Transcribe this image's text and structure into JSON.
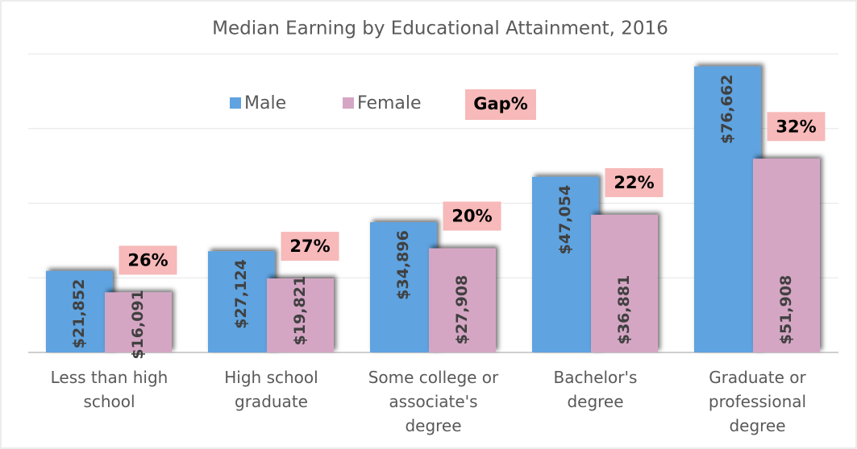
{
  "chart_data": {
    "type": "bar",
    "title": "Median Earning by Educational Attainment, 2016",
    "categories": [
      "Less than high school",
      "High school graduate",
      "Some college or associate's degree",
      "Bachelor's degree",
      "Graduate or professional degree"
    ],
    "series": [
      {
        "name": "Male",
        "color": "#5fa3e0",
        "values": [
          21852,
          27124,
          34896,
          47054,
          76662
        ],
        "value_labels": [
          "$21,852",
          "$27,124",
          "$34,896",
          "$47,054",
          "$76,662"
        ]
      },
      {
        "name": "Female",
        "color": "#d5a6c4",
        "values": [
          16091,
          19821,
          27908,
          36881,
          51908
        ],
        "value_labels": [
          "$16,091",
          "$19,821",
          "$27,908",
          "$36,881",
          "$51,908"
        ]
      }
    ],
    "gap": {
      "name": "Gap%",
      "color": "#f7b9b9",
      "values": [
        26,
        27,
        20,
        22,
        32
      ],
      "value_labels": [
        "26%",
        "27%",
        "20%",
        "22%",
        "32%"
      ]
    },
    "ylim": [
      0,
      80000
    ],
    "yticks": [
      0,
      20000,
      40000,
      60000,
      80000
    ],
    "grid": true
  }
}
